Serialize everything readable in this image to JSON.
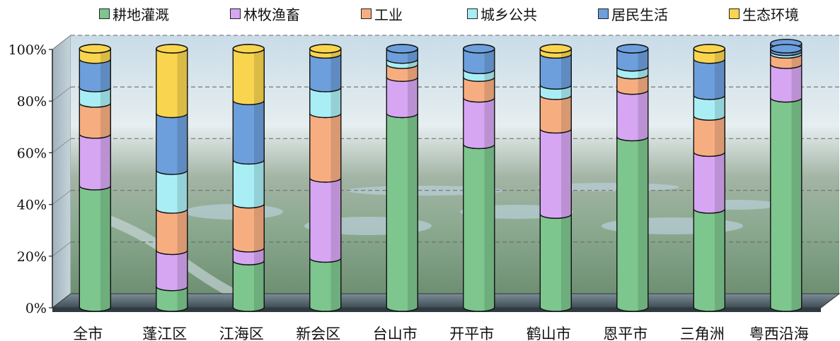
{
  "chart_data": {
    "type": "bar",
    "stacked": true,
    "percent": true,
    "categories": [
      "全市",
      "蓬江区",
      "江海区",
      "新会区",
      "台山市",
      "开平市",
      "鹤山市",
      "恩平市",
      "三角洲",
      "粤西沿海"
    ],
    "series": [
      {
        "name": "耕地灌溉",
        "color": "#7dc68e",
        "values": [
          47,
          8,
          18,
          19,
          75,
          63,
          36,
          66,
          38,
          81
        ]
      },
      {
        "name": "林牧渔畜",
        "color": "#d6a6f2",
        "values": [
          20,
          14,
          5,
          31,
          14,
          18,
          33,
          18,
          22,
          13
        ]
      },
      {
        "name": "工业",
        "color": "#f6ae81",
        "values": [
          12,
          16,
          17,
          25,
          5,
          8,
          13,
          6,
          14,
          4
        ]
      },
      {
        "name": "城乡公共",
        "color": "#a9eef4",
        "values": [
          6,
          15,
          17,
          10,
          2,
          3,
          4,
          3,
          8,
          1
        ]
      },
      {
        "name": "居民生活",
        "color": "#6d9fdc",
        "values": [
          11,
          22,
          23,
          13,
          4,
          8,
          12,
          7,
          14,
          3
        ]
      },
      {
        "name": "生态环境",
        "color": "#f9d54f",
        "values": [
          4,
          25,
          20,
          2,
          0,
          0,
          2,
          0,
          4,
          0
        ]
      }
    ],
    "ylim": [
      0,
      100
    ],
    "yticks": [
      "0%",
      "20%",
      "40%",
      "60%",
      "80%",
      "100%"
    ],
    "legend_position": "top",
    "grid": true,
    "background": "photo of river delta fishponds and town"
  }
}
